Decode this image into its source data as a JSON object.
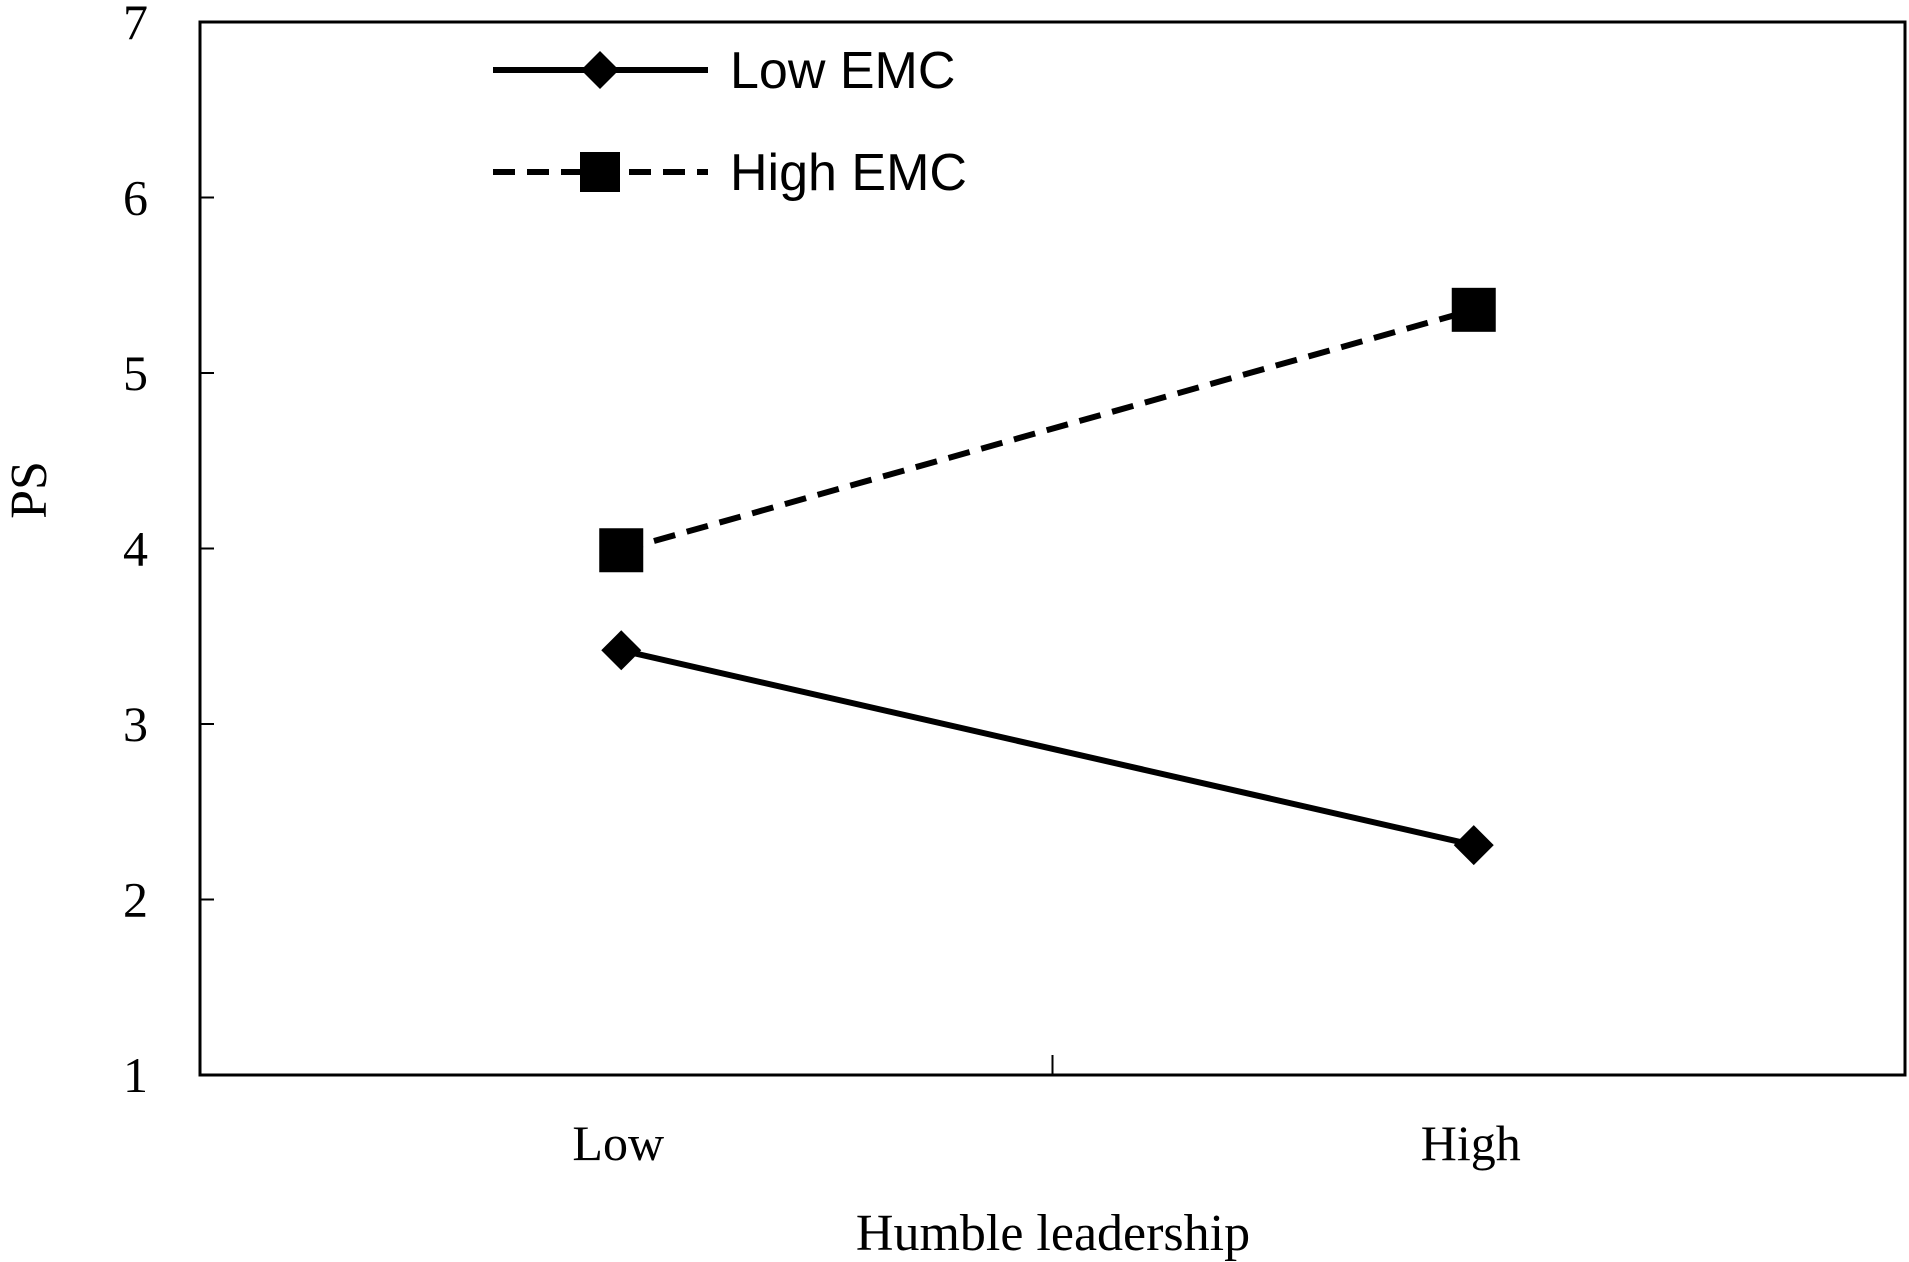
{
  "chart_data": {
    "type": "line",
    "title": "",
    "xlabel": "Humble leadership",
    "ylabel": "PS",
    "categories": [
      "Low",
      "High"
    ],
    "ylim": [
      1,
      7
    ],
    "yticks": [
      "1",
      "2",
      "3",
      "4",
      "5",
      "6",
      "7"
    ],
    "grid": false,
    "legend_position": "top-left",
    "series": [
      {
        "name": "Low EMC",
        "values": [
          3.42,
          2.31
        ],
        "line_style": "solid",
        "marker": "diamond",
        "color": "#000000"
      },
      {
        "name": "High EMC",
        "values": [
          3.99,
          5.36
        ],
        "line_style": "dashed",
        "marker": "square",
        "color": "#000000"
      }
    ]
  }
}
